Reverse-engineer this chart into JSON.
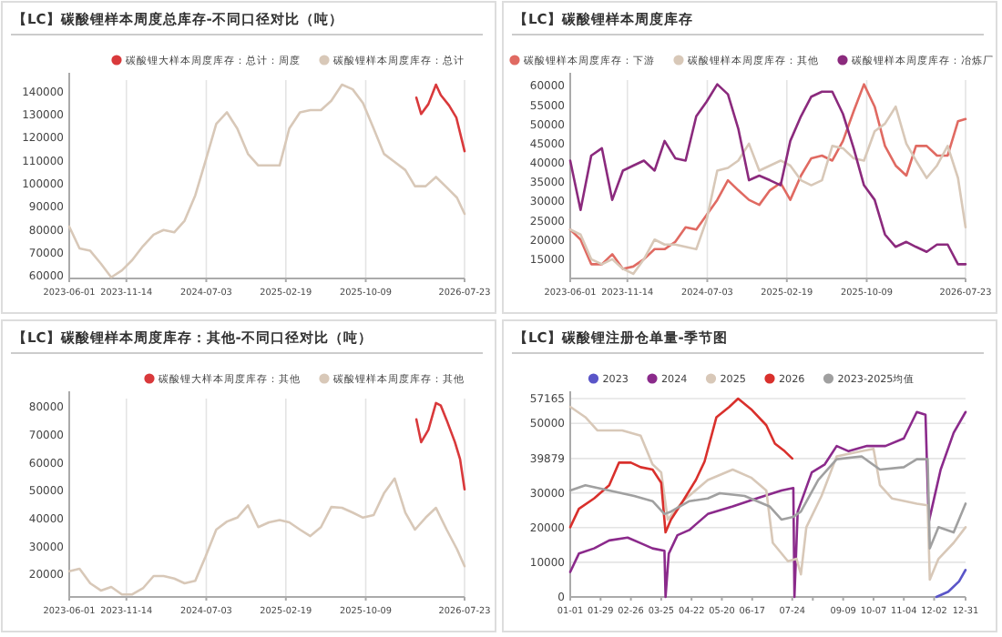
{
  "chart_data": [
    {
      "type": "line",
      "title": "【LC】碳酸锂样本周度总库存-不同口径对比（吨）",
      "legend": "top right",
      "grid": "x",
      "xlim": [
        "2023-06-01",
        "2026-07-23"
      ],
      "xticks": [
        "2023-06-01",
        "2023-11-14",
        "2024-07-03",
        "2025-02-19",
        "2025-10-09",
        "2026-07-23"
      ],
      "ylim": [
        59000,
        145000
      ],
      "yticks": [
        60000,
        70000,
        80000,
        90000,
        100000,
        110000,
        120000,
        130000,
        140000
      ],
      "series": [
        {
          "name": "碳酸锂大样本周度库存：总计：周度",
          "color": "#d9393b",
          "x": [
            "2026-03-05",
            "2026-03-19",
            "2026-04-09",
            "2026-05-01",
            "2026-05-15",
            "2026-06-08",
            "2026-06-29",
            "2026-07-23"
          ],
          "values": [
            137400,
            130300,
            134600,
            143000,
            138500,
            134000,
            128800,
            114200
          ]
        },
        {
          "name": "碳酸锂样本周度库存：总计",
          "color": "#d8c8b8",
          "x": [
            "2023-06",
            "2023-07",
            "2023-08",
            "2023-09",
            "2023-10",
            "2023-11",
            "2023-12",
            "2024-01",
            "2024-02",
            "2024-03",
            "2024-04",
            "2024-05",
            "2024-06",
            "2024-07",
            "2024-08",
            "2024-09",
            "2024-10",
            "2024-11",
            "2024-12",
            "2025-01",
            "2025-02",
            "2025-03",
            "2025-04",
            "2025-05",
            "2025-06",
            "2025-07",
            "2025-08",
            "2025-09",
            "2025-10",
            "2025-11",
            "2025-12",
            "2026-01",
            "2026-02",
            "2026-03",
            "2026-04",
            "2026-05",
            "2026-06",
            "2026-07",
            "2026-07-23"
          ],
          "values": [
            81500,
            72000,
            71000,
            65400,
            59500,
            62500,
            67000,
            73000,
            78000,
            80000,
            79000,
            84000,
            95000,
            110000,
            126000,
            131000,
            124000,
            113000,
            108000,
            108000,
            108000,
            124000,
            131000,
            132000,
            132000,
            136000,
            143000,
            141000,
            135000,
            124000,
            113000,
            109500,
            106000,
            99000,
            99000,
            103000,
            98500,
            94000,
            87000
          ]
        }
      ]
    },
    {
      "type": "line",
      "title": "【LC】碳酸锂样本周度库存",
      "legend": "top",
      "grid": "x",
      "xlim": [
        "2023-06-01",
        "2026-07-23"
      ],
      "xticks": [
        "2023-06-01",
        "2023-11-14",
        "2024-07-03",
        "2025-02-19",
        "2025-10-09",
        "2026-07-23"
      ],
      "ylim": [
        10000,
        61500
      ],
      "yticks": [
        15000,
        20000,
        25000,
        30000,
        35000,
        40000,
        45000,
        50000,
        55000,
        60000
      ],
      "series": [
        {
          "name": "碳酸锂样本周度库存：下游",
          "color": "#e06a62",
          "x": [
            "2023-06",
            "2023-07",
            "2023-08",
            "2023-09",
            "2023-10",
            "2023-11",
            "2023-12",
            "2024-01",
            "2024-02",
            "2024-03",
            "2024-04",
            "2024-05",
            "2024-06",
            "2024-07",
            "2024-08",
            "2024-09",
            "2024-10",
            "2024-11",
            "2024-12",
            "2025-01",
            "2025-02",
            "2025-03",
            "2025-04",
            "2025-05",
            "2025-06",
            "2025-07",
            "2025-08",
            "2025-09",
            "2025-10",
            "2025-11",
            "2025-12",
            "2026-01",
            "2026-02",
            "2026-03",
            "2026-04",
            "2026-05",
            "2026-06",
            "2026-07",
            "2026-07-23"
          ],
          "values": [
            22700,
            20100,
            13700,
            13700,
            16300,
            12500,
            13100,
            15000,
            17600,
            17600,
            19500,
            23300,
            22700,
            26500,
            30400,
            35500,
            32900,
            30400,
            29100,
            32900,
            34800,
            30400,
            36700,
            41200,
            41900,
            40600,
            45700,
            53400,
            60400,
            54600,
            44400,
            39300,
            36700,
            44400,
            44400,
            41900,
            41900,
            50800,
            51400
          ]
        },
        {
          "name": "碳酸锂样本周度库存：其他",
          "color": "#d8c8b8",
          "x": [
            "2023-06",
            "2023-07",
            "2023-08",
            "2023-09",
            "2023-10",
            "2023-11",
            "2023-12",
            "2024-01",
            "2024-02",
            "2024-03",
            "2024-04",
            "2024-05",
            "2024-06",
            "2024-07",
            "2024-08",
            "2024-09",
            "2024-10",
            "2024-11",
            "2024-12",
            "2025-01",
            "2025-02",
            "2025-03",
            "2025-04",
            "2025-05",
            "2025-06",
            "2025-07",
            "2025-08",
            "2025-09",
            "2025-10",
            "2025-11",
            "2025-12",
            "2026-01",
            "2026-02",
            "2026-03",
            "2026-04",
            "2026-05",
            "2026-06",
            "2026-07",
            "2026-07-23"
          ],
          "values": [
            22700,
            21400,
            15000,
            13700,
            15000,
            12500,
            11200,
            15000,
            20100,
            18800,
            18800,
            18200,
            17600,
            25200,
            38000,
            38700,
            40600,
            45000,
            38000,
            39300,
            40600,
            39300,
            35500,
            34200,
            35500,
            44400,
            43800,
            41200,
            40600,
            48200,
            50200,
            54600,
            45000,
            40600,
            36100,
            39300,
            44400,
            36100,
            23300
          ]
        },
        {
          "name": "碳酸锂样本周度库存：冶炼厂",
          "color": "#8b2a7d",
          "x": [
            "2023-06",
            "2023-07",
            "2023-08",
            "2023-09",
            "2023-10",
            "2023-11",
            "2023-12",
            "2024-01",
            "2024-02",
            "2024-03",
            "2024-04",
            "2024-05",
            "2024-06",
            "2024-07",
            "2024-08",
            "2024-09",
            "2024-10",
            "2024-11",
            "2024-12",
            "2025-01",
            "2025-02",
            "2025-03",
            "2025-04",
            "2025-05",
            "2025-06",
            "2025-07",
            "2025-08",
            "2025-09",
            "2025-10",
            "2025-11",
            "2025-12",
            "2026-01",
            "2026-02",
            "2026-03",
            "2026-04",
            "2026-05",
            "2026-06",
            "2026-07",
            "2026-07-23"
          ],
          "values": [
            40600,
            27800,
            41900,
            43800,
            30400,
            38000,
            39300,
            40600,
            38000,
            45700,
            41200,
            40600,
            52100,
            55900,
            60400,
            57800,
            48900,
            35500,
            36700,
            35500,
            34200,
            45700,
            52100,
            57200,
            58500,
            58500,
            52700,
            43800,
            34200,
            30400,
            21400,
            18200,
            19500,
            18200,
            16900,
            18800,
            18800,
            13700,
            13700
          ]
        }
      ]
    },
    {
      "type": "line",
      "title": "【LC】碳酸锂样本周度库存：其他-不同口径对比（吨）",
      "legend": "top right",
      "grid": "x",
      "xlim": [
        "2023-06-01",
        "2026-07-23"
      ],
      "xticks": [
        "2023-06-01",
        "2023-11-14",
        "2024-07-03",
        "2025-02-19",
        "2025-10-09",
        "2026-07-23"
      ],
      "ylim": [
        12000,
        83000
      ],
      "yticks": [
        20000,
        30000,
        40000,
        50000,
        60000,
        70000,
        80000
      ],
      "series": [
        {
          "name": "碳酸锂大样本周度库存：其他",
          "color": "#d9393b",
          "x": [
            "2026-03-05",
            "2026-03-19",
            "2026-04-09",
            "2026-05-01",
            "2026-05-15",
            "2026-06-01",
            "2026-06-25",
            "2026-07-10",
            "2026-07-23"
          ],
          "values": [
            75600,
            67400,
            71800,
            81400,
            80500,
            75300,
            67400,
            61300,
            50500
          ]
        },
        {
          "name": "碳酸锂样本周度库存：其他",
          "color": "#d8c8b8",
          "x": [
            "2023-06",
            "2023-07",
            "2023-08",
            "2023-09",
            "2023-10",
            "2023-11",
            "2023-12",
            "2024-01",
            "2024-02",
            "2024-03",
            "2024-04",
            "2024-05",
            "2024-06",
            "2024-07",
            "2024-08",
            "2024-09",
            "2024-10",
            "2024-11",
            "2024-12",
            "2025-01",
            "2025-02",
            "2025-03",
            "2025-04",
            "2025-05",
            "2025-06",
            "2025-07",
            "2025-08",
            "2025-09",
            "2025-10",
            "2025-11",
            "2025-12",
            "2026-01",
            "2026-02",
            "2026-03",
            "2026-04",
            "2026-05",
            "2026-06",
            "2026-07",
            "2026-07-23"
          ],
          "values": [
            21200,
            22100,
            16900,
            14300,
            15600,
            12900,
            12900,
            15100,
            19500,
            19500,
            18600,
            16900,
            17800,
            26500,
            36100,
            39000,
            40400,
            44800,
            37000,
            38700,
            39500,
            38700,
            36100,
            33800,
            37000,
            44200,
            43900,
            42200,
            40400,
            41300,
            49100,
            54400,
            42200,
            36100,
            40400,
            43900,
            36100,
            29100,
            23000
          ]
        }
      ]
    },
    {
      "type": "line",
      "title": "【LC】碳酸锂注册仓单量-季节图",
      "legend": "top",
      "grid": "y",
      "xlim": [
        "--01-01",
        "--12-31"
      ],
      "xticks": [
        {
          "value": "--01-01",
          "label": "01-01"
        },
        {
          "value": "--01-29",
          "label": "01-29"
        },
        {
          "value": "--02-26",
          "label": "02-26"
        },
        {
          "value": "--03-25",
          "label": "03-25"
        },
        {
          "value": "--04-22",
          "label": "04-22"
        },
        {
          "value": "--05-20",
          "label": "05-20"
        },
        {
          "value": "--06-17",
          "label": "06-17"
        },
        {
          "value": "--07-24",
          "label": "07-24"
        },
        {
          "value": "--08-12",
          "label": null
        },
        {
          "value": "--09-09",
          "label": "09-09"
        },
        {
          "value": "--10-07",
          "label": "10-07"
        },
        {
          "value": "--11-04",
          "label": "11-04"
        },
        {
          "value": "--12-02",
          "label": "12-02"
        },
        {
          "value": "--12-31",
          "label": "12-31"
        }
      ],
      "ylim": [
        0,
        57165
      ],
      "yticks": [
        0,
        10000,
        20000,
        30000,
        39879,
        50000,
        57165
      ],
      "series": [
        {
          "name": "2023",
          "color": "#5a55c8",
          "x": [
            "--12-04",
            "--12-15",
            "--12-25",
            "--12-31"
          ],
          "values": [
            0,
            1500,
            4500,
            7800
          ]
        },
        {
          "name": "2024",
          "color": "#8b2a8b",
          "x": [
            "--01-01",
            "--01-09",
            "--01-23",
            "--02-06",
            "--02-23",
            "--03-06",
            "--03-17",
            "--03-28",
            "--03-29",
            "--04-01",
            "--04-09",
            "--04-20",
            "--05-07",
            "--05-30",
            "--06-21",
            "--07-14",
            "--07-25",
            "--07-26",
            "--07-29",
            "--08-11",
            "--08-23",
            "--09-03",
            "--09-14",
            "--10-01",
            "--10-18",
            "--11-04",
            "--11-16",
            "--11-24",
            "--11-27",
            "--12-08",
            "--12-20",
            "--12-31"
          ],
          "values": [
            7200,
            12500,
            14000,
            16300,
            17100,
            15500,
            14000,
            13300,
            0,
            12500,
            17800,
            19300,
            23900,
            26100,
            28400,
            30700,
            31400,
            0,
            24600,
            35900,
            38200,
            43500,
            42000,
            43500,
            43500,
            45700,
            53300,
            52500,
            21600,
            36700,
            47300,
            53300
          ]
        },
        {
          "name": "2025",
          "color": "#d8c8b8",
          "x": [
            "--01-01",
            "--01-15",
            "--01-26",
            "--02-18",
            "--03-06",
            "--03-17",
            "--03-25",
            "--03-31",
            "--04-14",
            "--05-07",
            "--05-30",
            "--06-16",
            "--06-30",
            "--07-06",
            "--07-20",
            "--07-28",
            "--08-01",
            "--08-06",
            "--08-20",
            "--09-03",
            "--09-26",
            "--10-07",
            "--10-13",
            "--10-24",
            "--11-16",
            "--11-26",
            "--11-28",
            "--12-06",
            "--12-20",
            "--12-31"
          ],
          "values": [
            54800,
            51800,
            48000,
            48000,
            46500,
            38200,
            35900,
            22300,
            27600,
            33700,
            36700,
            34400,
            30700,
            15600,
            10300,
            11000,
            6500,
            20100,
            29100,
            40500,
            42000,
            42700,
            32200,
            28400,
            26900,
            26400,
            5000,
            11000,
            15600,
            20100
          ]
        },
        {
          "name": "2026",
          "color": "#d9302c",
          "x": [
            "--01-01",
            "--01-09",
            "--01-23",
            "--02-06",
            "--02-15",
            "--02-26",
            "--03-06",
            "--03-17",
            "--03-25",
            "--03-29",
            "--04-03",
            "--04-14",
            "--04-26",
            "--05-04",
            "--05-15",
            "--05-27",
            "--06-04",
            "--06-16",
            "--06-30",
            "--07-08",
            "--07-17",
            "--07-24"
          ],
          "values": [
            20100,
            25400,
            28400,
            32200,
            38700,
            38700,
            37400,
            36700,
            32900,
            18600,
            22300,
            27600,
            33700,
            39000,
            51800,
            54800,
            57165,
            54100,
            49500,
            44200,
            42000,
            39879
          ]
        },
        {
          "name": "2023-2025均值",
          "color": "#a0a0a0",
          "x": [
            "--01-01",
            "--01-15",
            "--02-06",
            "--02-29",
            "--03-17",
            "--03-28",
            "--04-03",
            "--04-20",
            "--05-07",
            "--05-18",
            "--06-10",
            "--07-03",
            "--07-14",
            "--07-25",
            "--08-01",
            "--08-17",
            "--09-03",
            "--09-26",
            "--10-13",
            "--11-04",
            "--11-16",
            "--11-26",
            "--11-28",
            "--12-06",
            "--12-20",
            "--12-31"
          ],
          "values": [
            30700,
            32200,
            30700,
            29100,
            27600,
            23900,
            24600,
            27600,
            28400,
            29900,
            29100,
            26100,
            22300,
            23100,
            24600,
            33700,
            39700,
            40500,
            36700,
            37400,
            39700,
            39700,
            14000,
            20100,
            18600,
            26900
          ]
        }
      ]
    }
  ]
}
